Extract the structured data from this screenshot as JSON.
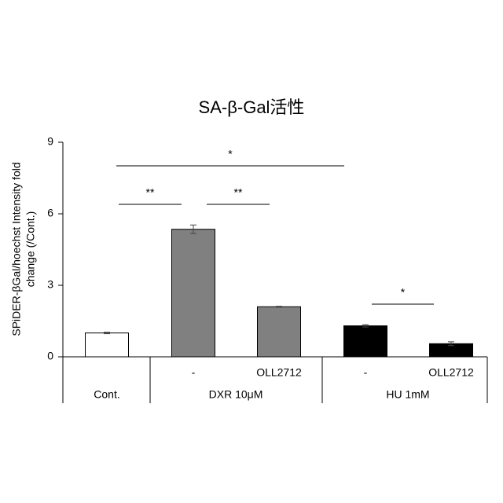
{
  "chart_data": {
    "type": "bar",
    "title": "SA-β-Gal活性",
    "ylabel": [
      "SPiDER-βGal/hoechst Intensity fold",
      "change (/Cont.)"
    ],
    "categories": [
      null,
      "-",
      "OLL2712",
      "-",
      "OLL2712"
    ],
    "groups": [
      "Cont.",
      "DXR 10μM",
      "HU 1mM"
    ],
    "values": [
      1.0,
      5.35,
      2.1,
      1.3,
      0.55
    ],
    "errors": [
      0.03,
      0.18,
      0.02,
      0.05,
      0.08
    ],
    "colors": [
      "#ffffff",
      "#808080",
      "#808080",
      "#000000",
      "#000000"
    ],
    "ylim": [
      0,
      9
    ],
    "yticks": [
      0,
      3,
      6,
      9
    ],
    "annotations": [
      "**",
      "**",
      "*",
      "*"
    ]
  }
}
